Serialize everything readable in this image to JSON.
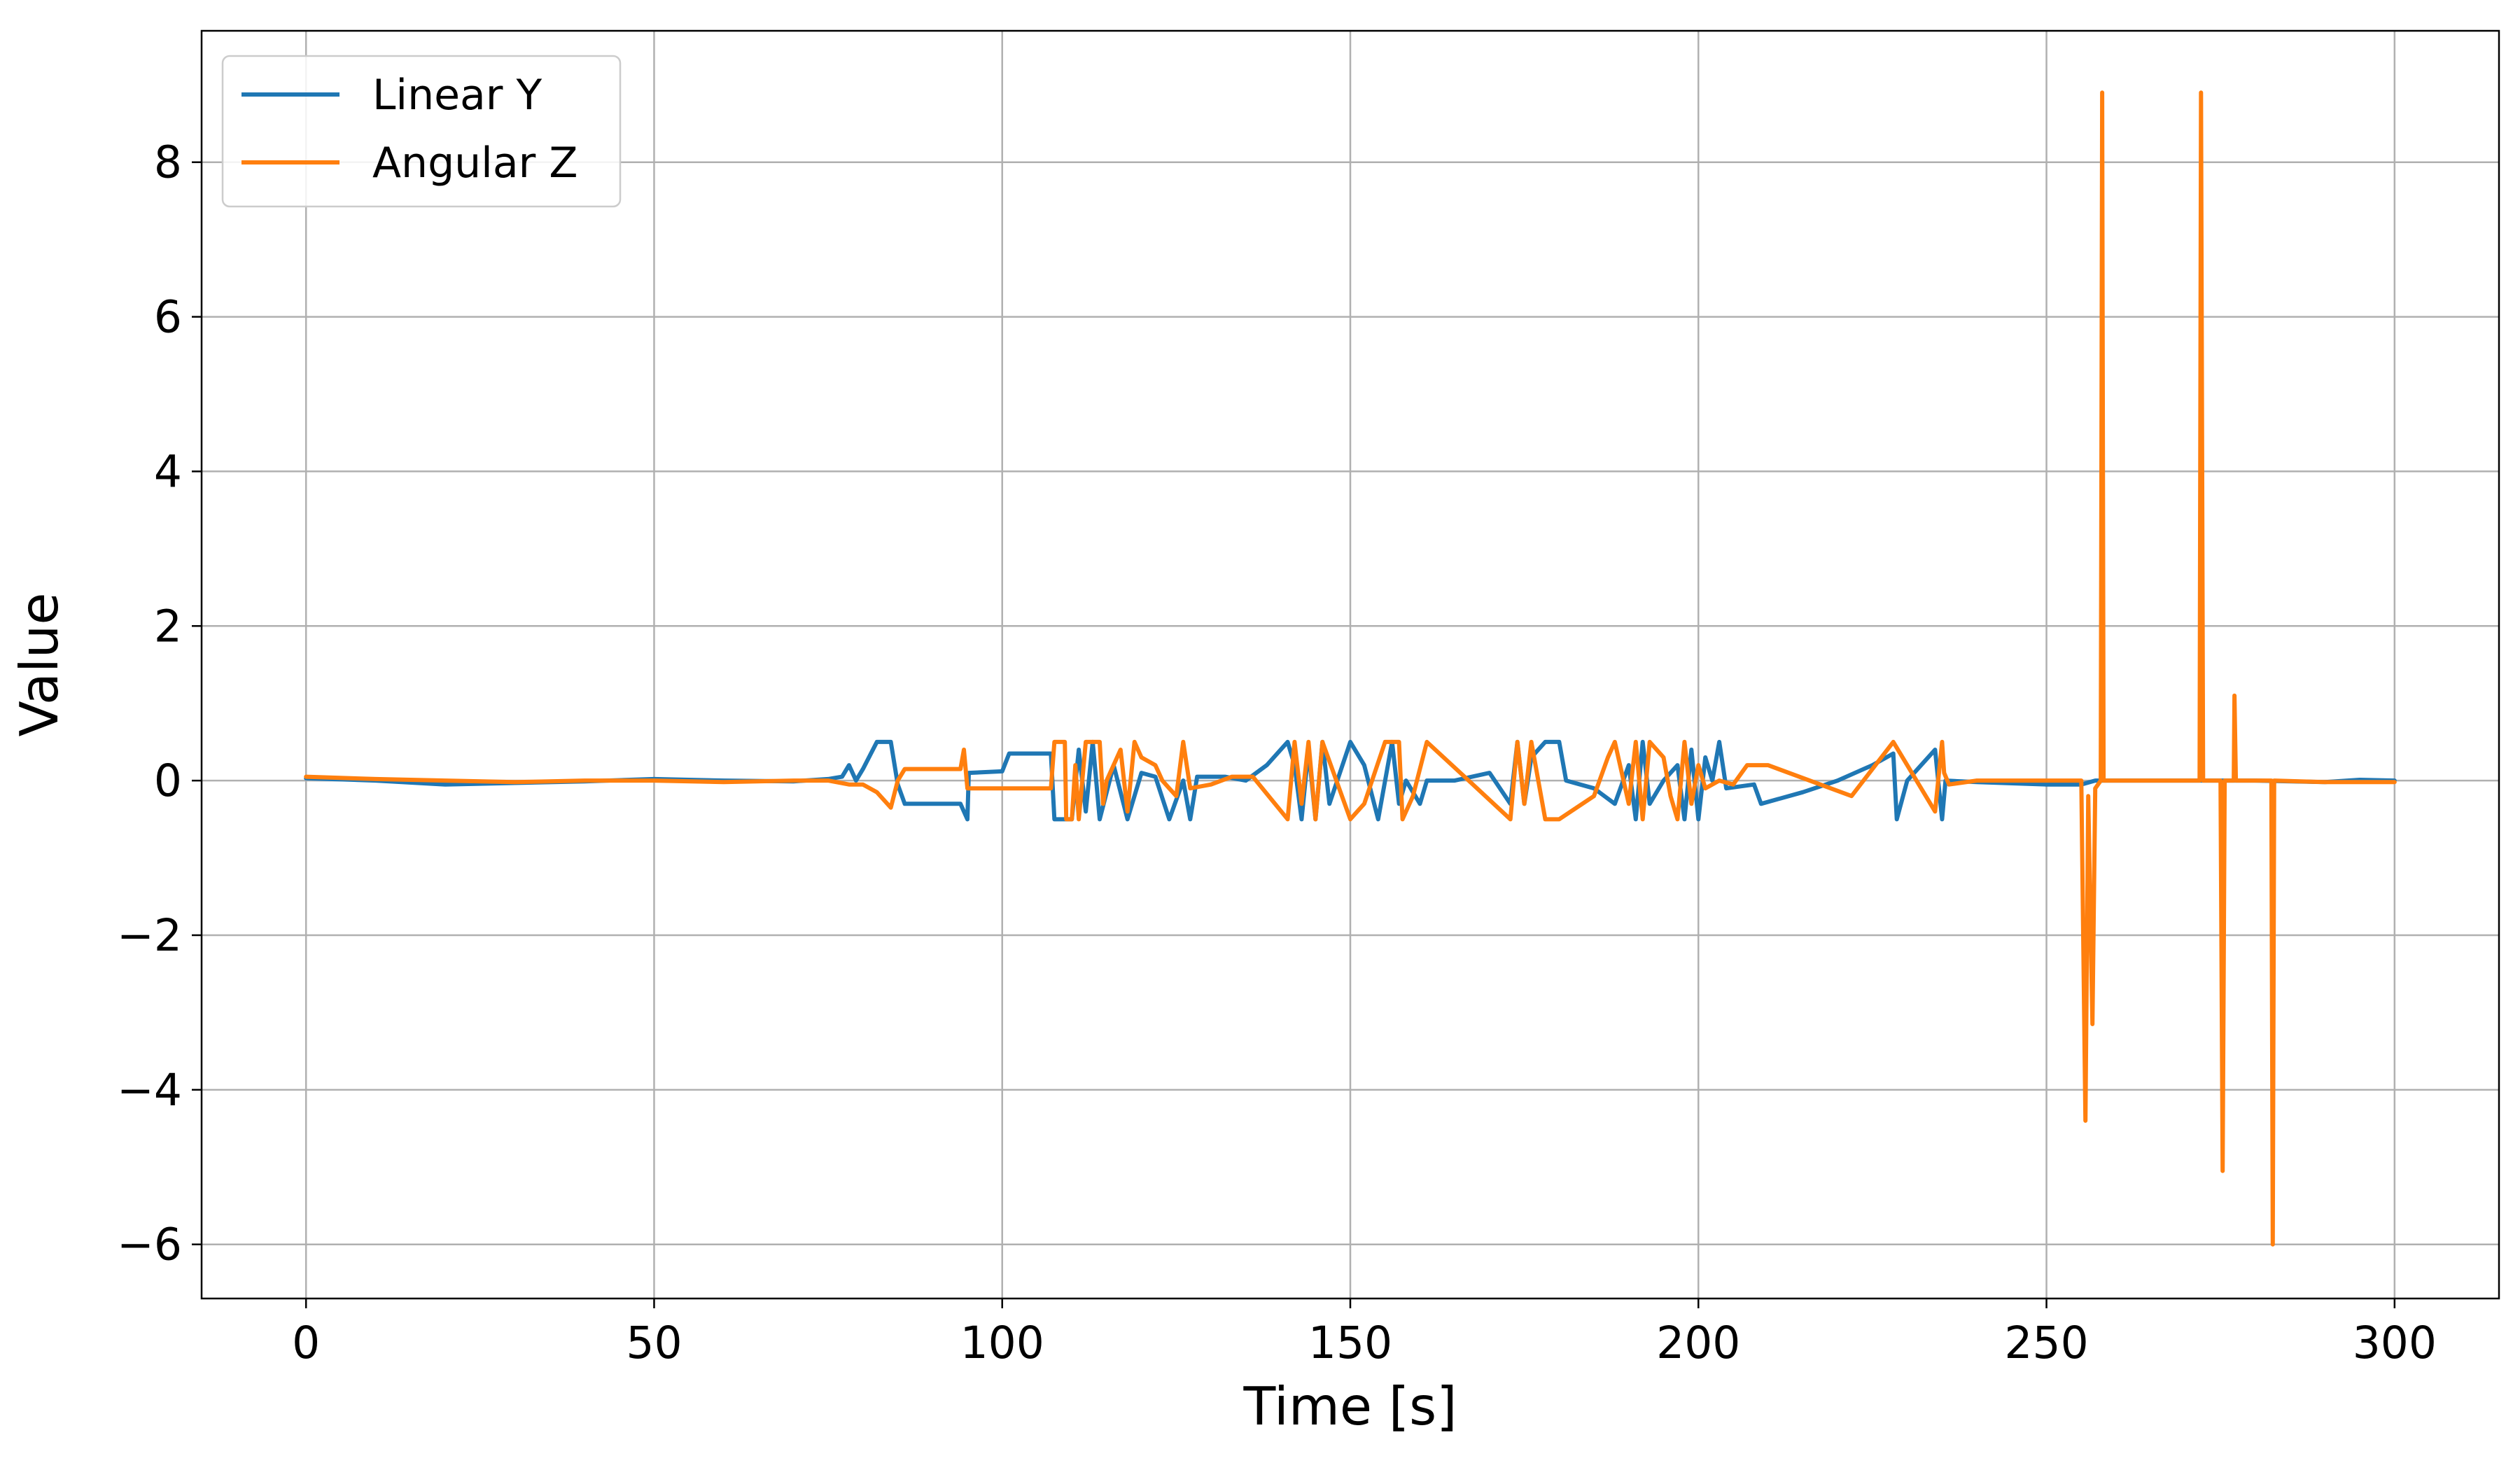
{
  "chart_data": {
    "type": "line",
    "title": "",
    "xlabel": "Time [s]",
    "ylabel": "Value",
    "xlim": [
      -15,
      315
    ],
    "ylim": [
      -6.7,
      9.7
    ],
    "xticks": [
      0,
      50,
      100,
      150,
      200,
      250,
      300
    ],
    "yticks": [
      -6,
      -4,
      -2,
      0,
      2,
      4,
      6,
      8
    ],
    "xtick_labels": [
      "0",
      "50",
      "100",
      "150",
      "200",
      "250",
      "300"
    ],
    "ytick_labels": [
      "−6",
      "−4",
      "−2",
      "0",
      "2",
      "4",
      "6",
      "8"
    ],
    "grid": true,
    "legend_position": "upper-left",
    "series": [
      {
        "name": "Linear Y",
        "color": "#1f77b4",
        "points": [
          [
            0,
            0.03
          ],
          [
            10,
            0.0
          ],
          [
            20,
            -0.05
          ],
          [
            30,
            -0.03
          ],
          [
            40,
            -0.01
          ],
          [
            50,
            0.02
          ],
          [
            60,
            0.0
          ],
          [
            70,
            -0.01
          ],
          [
            75,
            0.02
          ],
          [
            77,
            0.05
          ],
          [
            78,
            0.2
          ],
          [
            79,
            0.0
          ],
          [
            80,
            0.15
          ],
          [
            82,
            0.5
          ],
          [
            84,
            0.5
          ],
          [
            85,
            -0.05
          ],
          [
            86,
            -0.3
          ],
          [
            90,
            -0.3
          ],
          [
            94,
            -0.3
          ],
          [
            95,
            -0.5
          ],
          [
            95.2,
            0.1
          ],
          [
            100,
            0.12
          ],
          [
            101,
            0.35
          ],
          [
            107,
            0.35
          ],
          [
            107.5,
            -0.5
          ],
          [
            110,
            -0.5
          ],
          [
            111,
            0.4
          ],
          [
            112,
            -0.4
          ],
          [
            113,
            0.5
          ],
          [
            114,
            -0.5
          ],
          [
            116,
            0.2
          ],
          [
            118,
            -0.5
          ],
          [
            120,
            0.1
          ],
          [
            122,
            0.05
          ],
          [
            124,
            -0.5
          ],
          [
            126,
            0.0
          ],
          [
            127,
            -0.5
          ],
          [
            128,
            0.05
          ],
          [
            132,
            0.05
          ],
          [
            135,
            0.0
          ],
          [
            138,
            0.2
          ],
          [
            141,
            0.5
          ],
          [
            142,
            0.2
          ],
          [
            143,
            -0.5
          ],
          [
            144,
            0.4
          ],
          [
            145,
            -0.5
          ],
          [
            146,
            0.5
          ],
          [
            147,
            -0.3
          ],
          [
            150,
            0.5
          ],
          [
            152,
            0.2
          ],
          [
            154,
            -0.5
          ],
          [
            156,
            0.5
          ],
          [
            157,
            -0.3
          ],
          [
            158,
            0.0
          ],
          [
            160,
            -0.3
          ],
          [
            161,
            0.0
          ],
          [
            165,
            0.0
          ],
          [
            170,
            0.1
          ],
          [
            173,
            -0.3
          ],
          [
            174,
            0.5
          ],
          [
            175,
            -0.3
          ],
          [
            176,
            0.3
          ],
          [
            178,
            0.5
          ],
          [
            180,
            0.5
          ],
          [
            181,
            0.0
          ],
          [
            185,
            -0.1
          ],
          [
            188,
            -0.3
          ],
          [
            190,
            0.2
          ],
          [
            191,
            -0.5
          ],
          [
            192,
            0.5
          ],
          [
            193,
            -0.3
          ],
          [
            195,
            0.0
          ],
          [
            197,
            0.2
          ],
          [
            198,
            -0.5
          ],
          [
            199,
            0.4
          ],
          [
            200,
            -0.5
          ],
          [
            201,
            0.3
          ],
          [
            202,
            0.0
          ],
          [
            203,
            0.5
          ],
          [
            204,
            -0.1
          ],
          [
            208,
            -0.05
          ],
          [
            209,
            -0.3
          ],
          [
            215,
            -0.15
          ],
          [
            220,
            0.0
          ],
          [
            225,
            0.2
          ],
          [
            228,
            0.35
          ],
          [
            228.5,
            -0.5
          ],
          [
            230,
            0.0
          ],
          [
            234,
            0.4
          ],
          [
            235,
            -0.5
          ],
          [
            235.5,
            0.0
          ],
          [
            240,
            -0.02
          ],
          [
            250,
            -0.05
          ],
          [
            255,
            -0.05
          ],
          [
            257,
            0.0
          ],
          [
            260,
            0.0
          ],
          [
            270,
            0.0
          ],
          [
            280,
            0.0
          ],
          [
            290,
            -0.02
          ],
          [
            295,
            0.01
          ],
          [
            300,
            0.0
          ]
        ]
      },
      {
        "name": "Angular Z",
        "color": "#ff7f0e",
        "points": [
          [
            0,
            0.05
          ],
          [
            10,
            0.02
          ],
          [
            20,
            0.0
          ],
          [
            30,
            -0.02
          ],
          [
            40,
            0.0
          ],
          [
            50,
            0.0
          ],
          [
            60,
            -0.02
          ],
          [
            70,
            0.0
          ],
          [
            75,
            0.0
          ],
          [
            78,
            -0.05
          ],
          [
            80,
            -0.05
          ],
          [
            82,
            -0.15
          ],
          [
            84,
            -0.35
          ],
          [
            85,
            0.0
          ],
          [
            86,
            0.15
          ],
          [
            90,
            0.15
          ],
          [
            94,
            0.15
          ],
          [
            94.5,
            0.4
          ],
          [
            95,
            -0.1
          ],
          [
            100,
            -0.1
          ],
          [
            105,
            -0.1
          ],
          [
            107,
            -0.1
          ],
          [
            107.5,
            0.5
          ],
          [
            109,
            0.5
          ],
          [
            109.2,
            -0.5
          ],
          [
            110,
            -0.5
          ],
          [
            110.5,
            0.2
          ],
          [
            111,
            -0.5
          ],
          [
            112,
            0.5
          ],
          [
            114,
            0.5
          ],
          [
            114.5,
            -0.3
          ],
          [
            115,
            0.0
          ],
          [
            117,
            0.4
          ],
          [
            118,
            -0.4
          ],
          [
            119,
            0.5
          ],
          [
            120,
            0.3
          ],
          [
            122,
            0.2
          ],
          [
            123,
            0.0
          ],
          [
            124,
            -0.1
          ],
          [
            125,
            -0.2
          ],
          [
            126,
            0.5
          ],
          [
            127,
            -0.1
          ],
          [
            130,
            -0.05
          ],
          [
            133,
            0.05
          ],
          [
            136,
            0.05
          ],
          [
            141,
            -0.5
          ],
          [
            142,
            0.5
          ],
          [
            143,
            -0.3
          ],
          [
            144,
            0.5
          ],
          [
            145,
            -0.5
          ],
          [
            146,
            0.5
          ],
          [
            148,
            0.0
          ],
          [
            150,
            -0.5
          ],
          [
            152,
            -0.3
          ],
          [
            155,
            0.5
          ],
          [
            157,
            0.5
          ],
          [
            157.5,
            -0.5
          ],
          [
            159,
            -0.2
          ],
          [
            161,
            0.5
          ],
          [
            167,
            0.0
          ],
          [
            173,
            -0.5
          ],
          [
            174,
            0.5
          ],
          [
            175,
            -0.3
          ],
          [
            176,
            0.5
          ],
          [
            178,
            -0.5
          ],
          [
            180,
            -0.5
          ],
          [
            185,
            -0.2
          ],
          [
            187,
            0.3
          ],
          [
            188,
            0.5
          ],
          [
            190,
            -0.3
          ],
          [
            191,
            0.5
          ],
          [
            192,
            -0.5
          ],
          [
            193,
            0.5
          ],
          [
            195,
            0.3
          ],
          [
            196,
            -0.2
          ],
          [
            197,
            -0.5
          ],
          [
            198,
            0.5
          ],
          [
            199,
            -0.3
          ],
          [
            200,
            0.2
          ],
          [
            201,
            -0.1
          ],
          [
            203,
            0.0
          ],
          [
            205,
            -0.05
          ],
          [
            207,
            0.2
          ],
          [
            210,
            0.2
          ],
          [
            222,
            -0.2
          ],
          [
            228,
            0.5
          ],
          [
            230,
            0.2
          ],
          [
            234,
            -0.4
          ],
          [
            235,
            0.5
          ],
          [
            235.3,
            0.1
          ],
          [
            236,
            -0.05
          ],
          [
            240,
            0.0
          ],
          [
            250,
            0.0
          ],
          [
            255,
            0.0
          ],
          [
            255.6,
            -4.4
          ],
          [
            256,
            -0.2
          ],
          [
            256.6,
            -3.15
          ],
          [
            257,
            -0.1
          ],
          [
            257.8,
            0.0
          ],
          [
            258,
            8.9
          ],
          [
            258.2,
            0.0
          ],
          [
            270,
            0.0
          ],
          [
            272,
            0.0
          ],
          [
            272.2,
            8.9
          ],
          [
            272.5,
            0.0
          ],
          [
            275,
            0.0
          ],
          [
            275.3,
            -5.05
          ],
          [
            275.6,
            0.0
          ],
          [
            276.9,
            0.0
          ],
          [
            277,
            1.1
          ],
          [
            277.2,
            0.0
          ],
          [
            282.3,
            0.0
          ],
          [
            282.5,
            -6.0
          ],
          [
            282.7,
            0.0
          ],
          [
            290,
            -0.02
          ],
          [
            300,
            -0.02
          ]
        ]
      }
    ]
  }
}
